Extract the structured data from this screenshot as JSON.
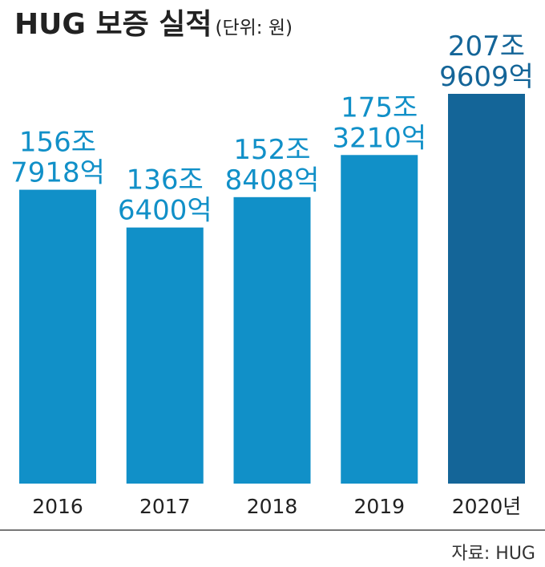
{
  "chart_data": {
    "type": "bar",
    "title": "HUG 보증 실적",
    "subtitle": "(단위: 원)",
    "categories": [
      "2016",
      "2017",
      "2018",
      "2019",
      "2020년"
    ],
    "values": [
      1567918,
      1366400,
      1528408,
      1753210,
      2079609
    ],
    "value_labels": [
      [
        "156조",
        "7918억"
      ],
      [
        "136조",
        "6400억"
      ],
      [
        "152조",
        "8408억"
      ],
      [
        "175조",
        "3210억"
      ],
      [
        "207조",
        "9609억"
      ]
    ],
    "colors": [
      "#1190c8",
      "#1190c8",
      "#1190c8",
      "#1190c8",
      "#146598"
    ],
    "source": "자료: HUG"
  }
}
